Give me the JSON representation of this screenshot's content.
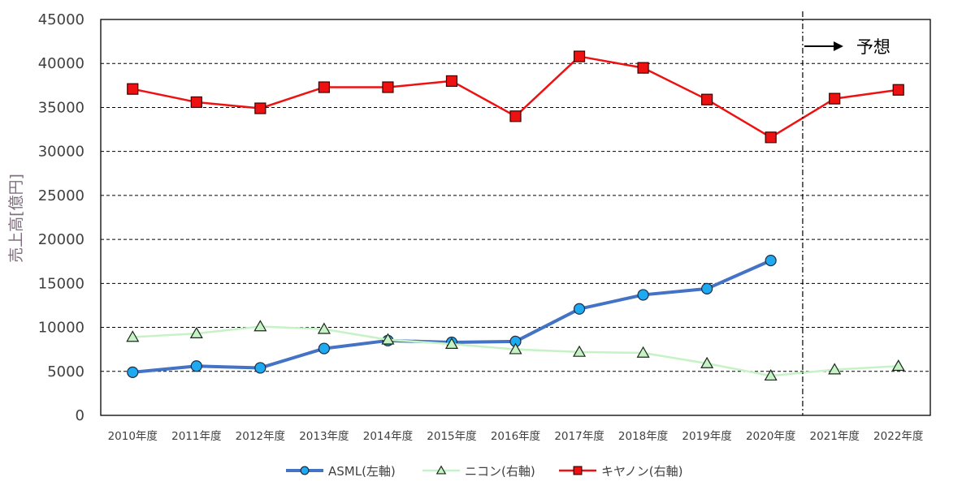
{
  "chart_data": {
    "type": "line",
    "ylabel": "売上高[億円]",
    "ylim": [
      0,
      45000
    ],
    "yticks": [
      0,
      5000,
      10000,
      15000,
      20000,
      25000,
      30000,
      35000,
      40000,
      45000
    ],
    "grid": "horizontal-dashed",
    "categories": [
      "2010年度",
      "2011年度",
      "2012年度",
      "2013年度",
      "2014年度",
      "2015年度",
      "2016年度",
      "2017年度",
      "2018年度",
      "2019年度",
      "2020年度",
      "2021年度",
      "2022年度"
    ],
    "series": [
      {
        "name": "ASML(左軸)",
        "color": "#4472c4",
        "marker": "circle",
        "marker_fill": "#1eaaf1",
        "values": [
          4900,
          5600,
          5400,
          7600,
          8500,
          8300,
          8400,
          12100,
          13700,
          14400,
          17600,
          null,
          null
        ]
      },
      {
        "name": "ニコン(右軸)",
        "color": "#c6f2c6",
        "marker": "triangle",
        "marker_fill": "#c6f2c6",
        "values": [
          8900,
          9300,
          10100,
          9800,
          8600,
          8100,
          7500,
          7200,
          7100,
          5900,
          4500,
          5200,
          5600
        ]
      },
      {
        "name": "キヤノン(右軸)",
        "color": "#ee1111",
        "marker": "square",
        "marker_fill": "#ee1111",
        "values": [
          37100,
          35600,
          34900,
          37300,
          37300,
          38000,
          34000,
          40800,
          39500,
          35900,
          31600,
          36000,
          37000
        ]
      }
    ],
    "annotations": [
      {
        "text": "予想",
        "type": "forecast-divider",
        "after_category": "2020年度"
      }
    ],
    "legend": "bottom"
  }
}
